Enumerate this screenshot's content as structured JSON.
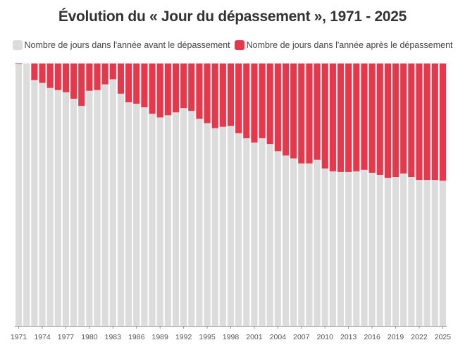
{
  "chart_data": {
    "type": "bar",
    "stacked": true,
    "title": "Évolution du « Jour du dépassement », 1971 - 2025",
    "legend_position": "top",
    "grid": false,
    "ylim": [
      0,
      365
    ],
    "categories": [
      1971,
      1972,
      1973,
      1974,
      1975,
      1976,
      1977,
      1978,
      1979,
      1980,
      1981,
      1982,
      1983,
      1984,
      1985,
      1986,
      1987,
      1988,
      1989,
      1990,
      1991,
      1992,
      1993,
      1994,
      1995,
      1996,
      1997,
      1998,
      1999,
      2000,
      2001,
      2002,
      2003,
      2004,
      2005,
      2006,
      2007,
      2008,
      2009,
      2010,
      2011,
      2012,
      2013,
      2014,
      2015,
      2016,
      2017,
      2018,
      2019,
      2020,
      2021,
      2022,
      2023,
      2024,
      2025
    ],
    "tick_labels": [
      "1971",
      "1974",
      "1977",
      "1980",
      "1983",
      "1986",
      "1989",
      "1992",
      "1995",
      "1998",
      "2001",
      "2004",
      "2007",
      "2010",
      "2013",
      "2016",
      "2019",
      "2022",
      "2025"
    ],
    "series": [
      {
        "name": "Nombre de jours dans l'année avant le dépassement",
        "color": "#dcdcdc",
        "values": [
          364,
          365,
          342,
          338,
          331,
          328,
          325,
          316,
          306,
          327,
          328,
          336,
          343,
          323,
          311,
          309,
          304,
          295,
          290,
          293,
          297,
          303,
          299,
          288,
          282,
          275,
          277,
          278,
          268,
          261,
          255,
          261,
          253,
          243,
          237,
          233,
          226,
          226,
          231,
          219,
          215,
          214,
          214,
          215,
          217,
          213,
          210,
          206,
          207,
          212,
          207,
          203,
          203,
          203,
          202
        ]
      },
      {
        "name": "Nombre de jours dans l'année après le dépassement",
        "color": "#e8364a",
        "values": [
          1,
          0,
          23,
          27,
          34,
          37,
          40,
          49,
          59,
          38,
          37,
          29,
          22,
          42,
          54,
          56,
          61,
          70,
          75,
          72,
          68,
          62,
          66,
          77,
          83,
          90,
          88,
          87,
          97,
          104,
          110,
          104,
          112,
          122,
          128,
          132,
          139,
          139,
          134,
          146,
          150,
          151,
          151,
          150,
          148,
          152,
          155,
          159,
          158,
          153,
          158,
          162,
          162,
          162,
          163
        ]
      }
    ]
  }
}
